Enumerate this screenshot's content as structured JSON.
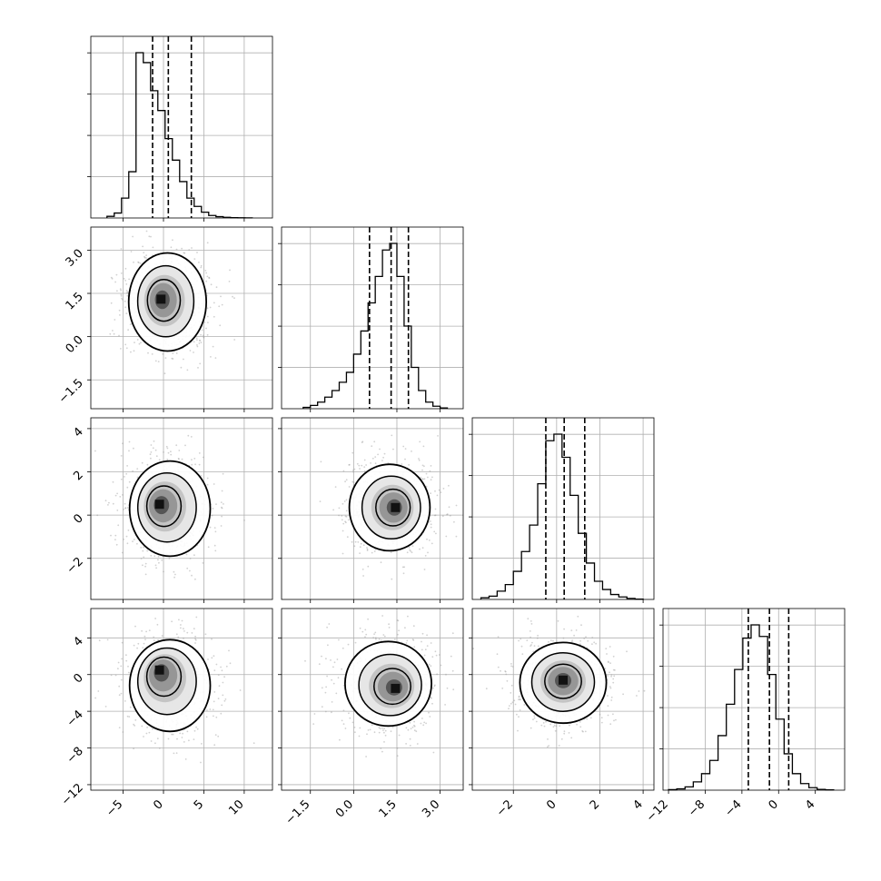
{
  "chart_data": {
    "type": "corner",
    "title": "",
    "parameters": [
      {
        "index": 0,
        "range": [
          -9,
          13.5
        ],
        "ticks": [
          -5,
          0,
          5,
          10
        ],
        "tick_labels": [
          "−5",
          "0",
          "5",
          "10"
        ]
      },
      {
        "index": 1,
        "range": [
          -2.5,
          3.8
        ],
        "ticks": [
          -1.5,
          0.0,
          1.5,
          3.0
        ],
        "tick_labels": [
          "−1.5",
          "0.0",
          "1.5",
          "3.0"
        ]
      },
      {
        "index": 2,
        "range": [
          -3.9,
          4.5
        ],
        "ticks": [
          -2,
          0,
          2,
          4
        ],
        "tick_labels": [
          "−2",
          "0",
          "2",
          "4"
        ]
      },
      {
        "index": 3,
        "range": [
          -12.6,
          7.2
        ],
        "ticks": [
          -12,
          -8,
          -4,
          0,
          4
        ],
        "tick_labels": [
          "−12",
          "−8",
          "−4",
          "0",
          "4"
        ]
      }
    ],
    "marginals": [
      {
        "param": 0,
        "quantiles": [
          -1.35,
          0.6,
          3.45
        ],
        "bin_edges_range": [
          -7,
          11
        ],
        "bins": 20,
        "counts": [
          0.01,
          0.03,
          0.12,
          0.28,
          1.0,
          0.94,
          0.77,
          0.65,
          0.48,
          0.35,
          0.22,
          0.12,
          0.07,
          0.035,
          0.015,
          0.008,
          0.004,
          0.002,
          0.001,
          0.0005
        ]
      },
      {
        "param": 1,
        "quantiles": [
          0.55,
          1.3,
          1.9
        ],
        "bin_edges_range": [
          -1.75,
          3.25
        ],
        "bins": 20,
        "counts": [
          0.008,
          0.02,
          0.04,
          0.07,
          0.11,
          0.16,
          0.22,
          0.33,
          0.47,
          0.64,
          0.8,
          0.96,
          1.0,
          0.8,
          0.5,
          0.25,
          0.11,
          0.04,
          0.015,
          0.005
        ]
      },
      {
        "param": 2,
        "quantiles": [
          -0.5,
          0.35,
          1.3
        ],
        "bin_edges_range": [
          -3.5,
          4.0
        ],
        "bins": 20,
        "counts": [
          0.01,
          0.02,
          0.05,
          0.09,
          0.17,
          0.29,
          0.45,
          0.7,
          0.96,
          1.0,
          0.86,
          0.63,
          0.4,
          0.22,
          0.11,
          0.06,
          0.03,
          0.015,
          0.006,
          0.002
        ]
      },
      {
        "param": 3,
        "quantiles": [
          -3.3,
          -1.0,
          1.1
        ],
        "bin_edges_range": [
          -12.0,
          6.0
        ],
        "bins": 20,
        "counts": [
          0.003,
          0.008,
          0.02,
          0.05,
          0.1,
          0.18,
          0.33,
          0.52,
          0.73,
          0.92,
          1.0,
          0.93,
          0.7,
          0.43,
          0.22,
          0.1,
          0.04,
          0.015,
          0.005,
          0.002
        ]
      }
    ],
    "pairs": [
      {
        "x_param": 0,
        "y_param": 1,
        "center": [
          0.5,
          1.2
        ],
        "peak": [
          -0.3,
          1.3
        ],
        "sd": [
          2.4,
          0.85
        ]
      },
      {
        "x_param": 0,
        "y_param": 2,
        "center": [
          0.8,
          0.3
        ],
        "peak": [
          -0.5,
          0.5
        ],
        "sd": [
          2.5,
          1.1
        ]
      },
      {
        "x_param": 1,
        "y_param": 2,
        "center": [
          1.25,
          0.35
        ],
        "peak": [
          1.45,
          0.35
        ],
        "sd": [
          0.7,
          1.0
        ]
      },
      {
        "x_param": 0,
        "y_param": 3,
        "center": [
          0.8,
          -1.2
        ],
        "peak": [
          -0.5,
          0.5
        ],
        "sd": [
          2.5,
          2.5
        ]
      },
      {
        "x_param": 1,
        "y_param": 3,
        "center": [
          1.2,
          -1.0
        ],
        "peak": [
          1.45,
          -1.5
        ],
        "sd": [
          0.75,
          2.3
        ]
      },
      {
        "x_param": 2,
        "y_param": 3,
        "center": [
          0.3,
          -0.9
        ],
        "peak": [
          0.3,
          -0.6
        ],
        "sd": [
          1.0,
          2.2
        ]
      }
    ],
    "contour_levels": [
      "39%",
      "86%",
      "99%"
    ],
    "grid": true,
    "legend": "none"
  }
}
